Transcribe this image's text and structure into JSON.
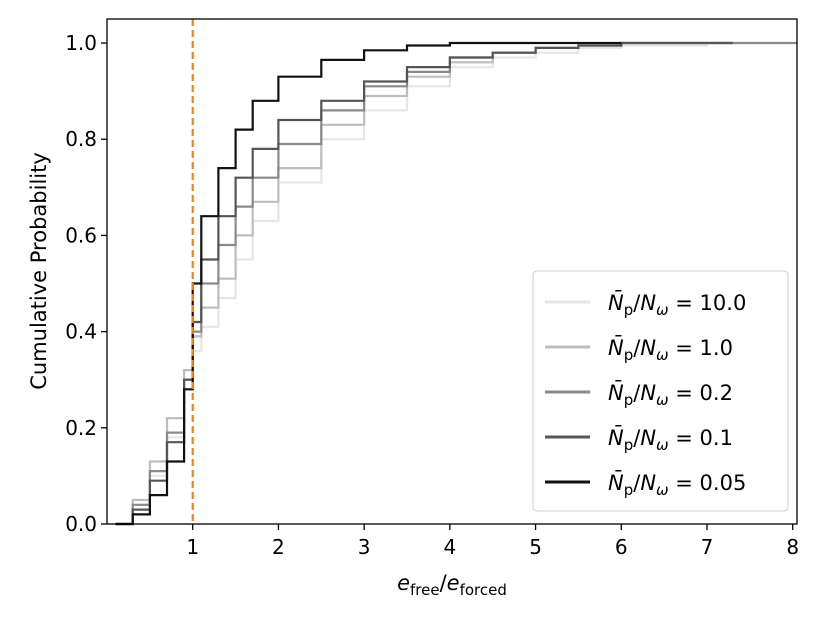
{
  "chart_data": {
    "type": "line",
    "step": true,
    "xlabel": {
      "main": "e",
      "sub1": "free",
      "slash": "/",
      "main2": "e",
      "sub2": "forced"
    },
    "ylabel": "Cumulative Probability",
    "xlim": [
      0.0,
      8.05
    ],
    "ylim": [
      0.0,
      1.05
    ],
    "xticks": [
      1,
      2,
      3,
      4,
      5,
      6,
      7,
      8
    ],
    "yticks": [
      0.0,
      0.2,
      0.4,
      0.6,
      0.8,
      1.0
    ],
    "ytick_labels": [
      "0.0",
      "0.2",
      "0.4",
      "0.6",
      "0.8",
      "1.0"
    ],
    "grid": false,
    "legend_position": "bottom-right",
    "reference_line": {
      "x": 1.0,
      "color": "#ff7f0e",
      "style": "dashed"
    },
    "series": [
      {
        "value": "10.0",
        "color": "#e6e6e6",
        "x": [
          0.1,
          0.3,
          0.5,
          0.7,
          0.9,
          1.0,
          1.1,
          1.3,
          1.5,
          1.7,
          2.0,
          2.5,
          3.0,
          3.5,
          4.0,
          4.5,
          5.0,
          5.5,
          6.0,
          7.0,
          8.05
        ],
        "y": [
          0.0,
          0.04,
          0.1,
          0.18,
          0.28,
          0.36,
          0.41,
          0.47,
          0.55,
          0.63,
          0.71,
          0.8,
          0.86,
          0.91,
          0.95,
          0.97,
          0.98,
          0.99,
          0.995,
          1.0,
          1.0
        ]
      },
      {
        "value": "1.0",
        "color": "#bdbdbd",
        "x": [
          0.1,
          0.3,
          0.5,
          0.7,
          0.9,
          1.0,
          1.1,
          1.3,
          1.5,
          1.7,
          2.0,
          2.5,
          3.0,
          3.5,
          4.0,
          4.5,
          5.0,
          5.5,
          6.0,
          6.5,
          7.3
        ],
        "y": [
          0.0,
          0.05,
          0.13,
          0.22,
          0.32,
          0.39,
          0.45,
          0.51,
          0.6,
          0.67,
          0.74,
          0.83,
          0.89,
          0.93,
          0.96,
          0.98,
          0.99,
          0.995,
          1.0,
          1.0,
          1.0
        ]
      },
      {
        "value": "0.2",
        "color": "#8a8a8a",
        "x": [
          0.1,
          0.3,
          0.5,
          0.7,
          0.9,
          1.0,
          1.1,
          1.3,
          1.5,
          1.7,
          2.0,
          2.5,
          3.0,
          3.5,
          4.0,
          4.5,
          5.0,
          5.5,
          6.0,
          6.5,
          8.05
        ],
        "y": [
          0.0,
          0.04,
          0.11,
          0.19,
          0.3,
          0.4,
          0.5,
          0.58,
          0.66,
          0.72,
          0.79,
          0.86,
          0.91,
          0.94,
          0.97,
          0.98,
          0.99,
          0.995,
          1.0,
          1.0,
          1.0
        ]
      },
      {
        "value": "0.1",
        "color": "#555555",
        "x": [
          0.1,
          0.3,
          0.5,
          0.7,
          0.9,
          1.0,
          1.1,
          1.3,
          1.5,
          1.7,
          2.0,
          2.5,
          3.0,
          3.5,
          4.0,
          4.5,
          5.0,
          5.5,
          6.0,
          6.5,
          7.3
        ],
        "y": [
          0.0,
          0.03,
          0.09,
          0.17,
          0.3,
          0.42,
          0.55,
          0.64,
          0.72,
          0.78,
          0.84,
          0.88,
          0.92,
          0.95,
          0.97,
          0.98,
          0.99,
          0.995,
          1.0,
          1.0,
          1.0
        ]
      },
      {
        "value": "0.05",
        "color": "#111111",
        "x": [
          0.1,
          0.3,
          0.5,
          0.7,
          0.9,
          1.0,
          1.1,
          1.3,
          1.5,
          1.7,
          2.0,
          2.5,
          3.0,
          3.5,
          4.0,
          4.5,
          5.0,
          5.5,
          6.0
        ],
        "y": [
          0.0,
          0.02,
          0.06,
          0.13,
          0.28,
          0.5,
          0.64,
          0.74,
          0.82,
          0.88,
          0.93,
          0.965,
          0.985,
          0.995,
          1.0,
          1.0,
          1.0,
          1.0,
          1.0
        ]
      }
    ]
  }
}
